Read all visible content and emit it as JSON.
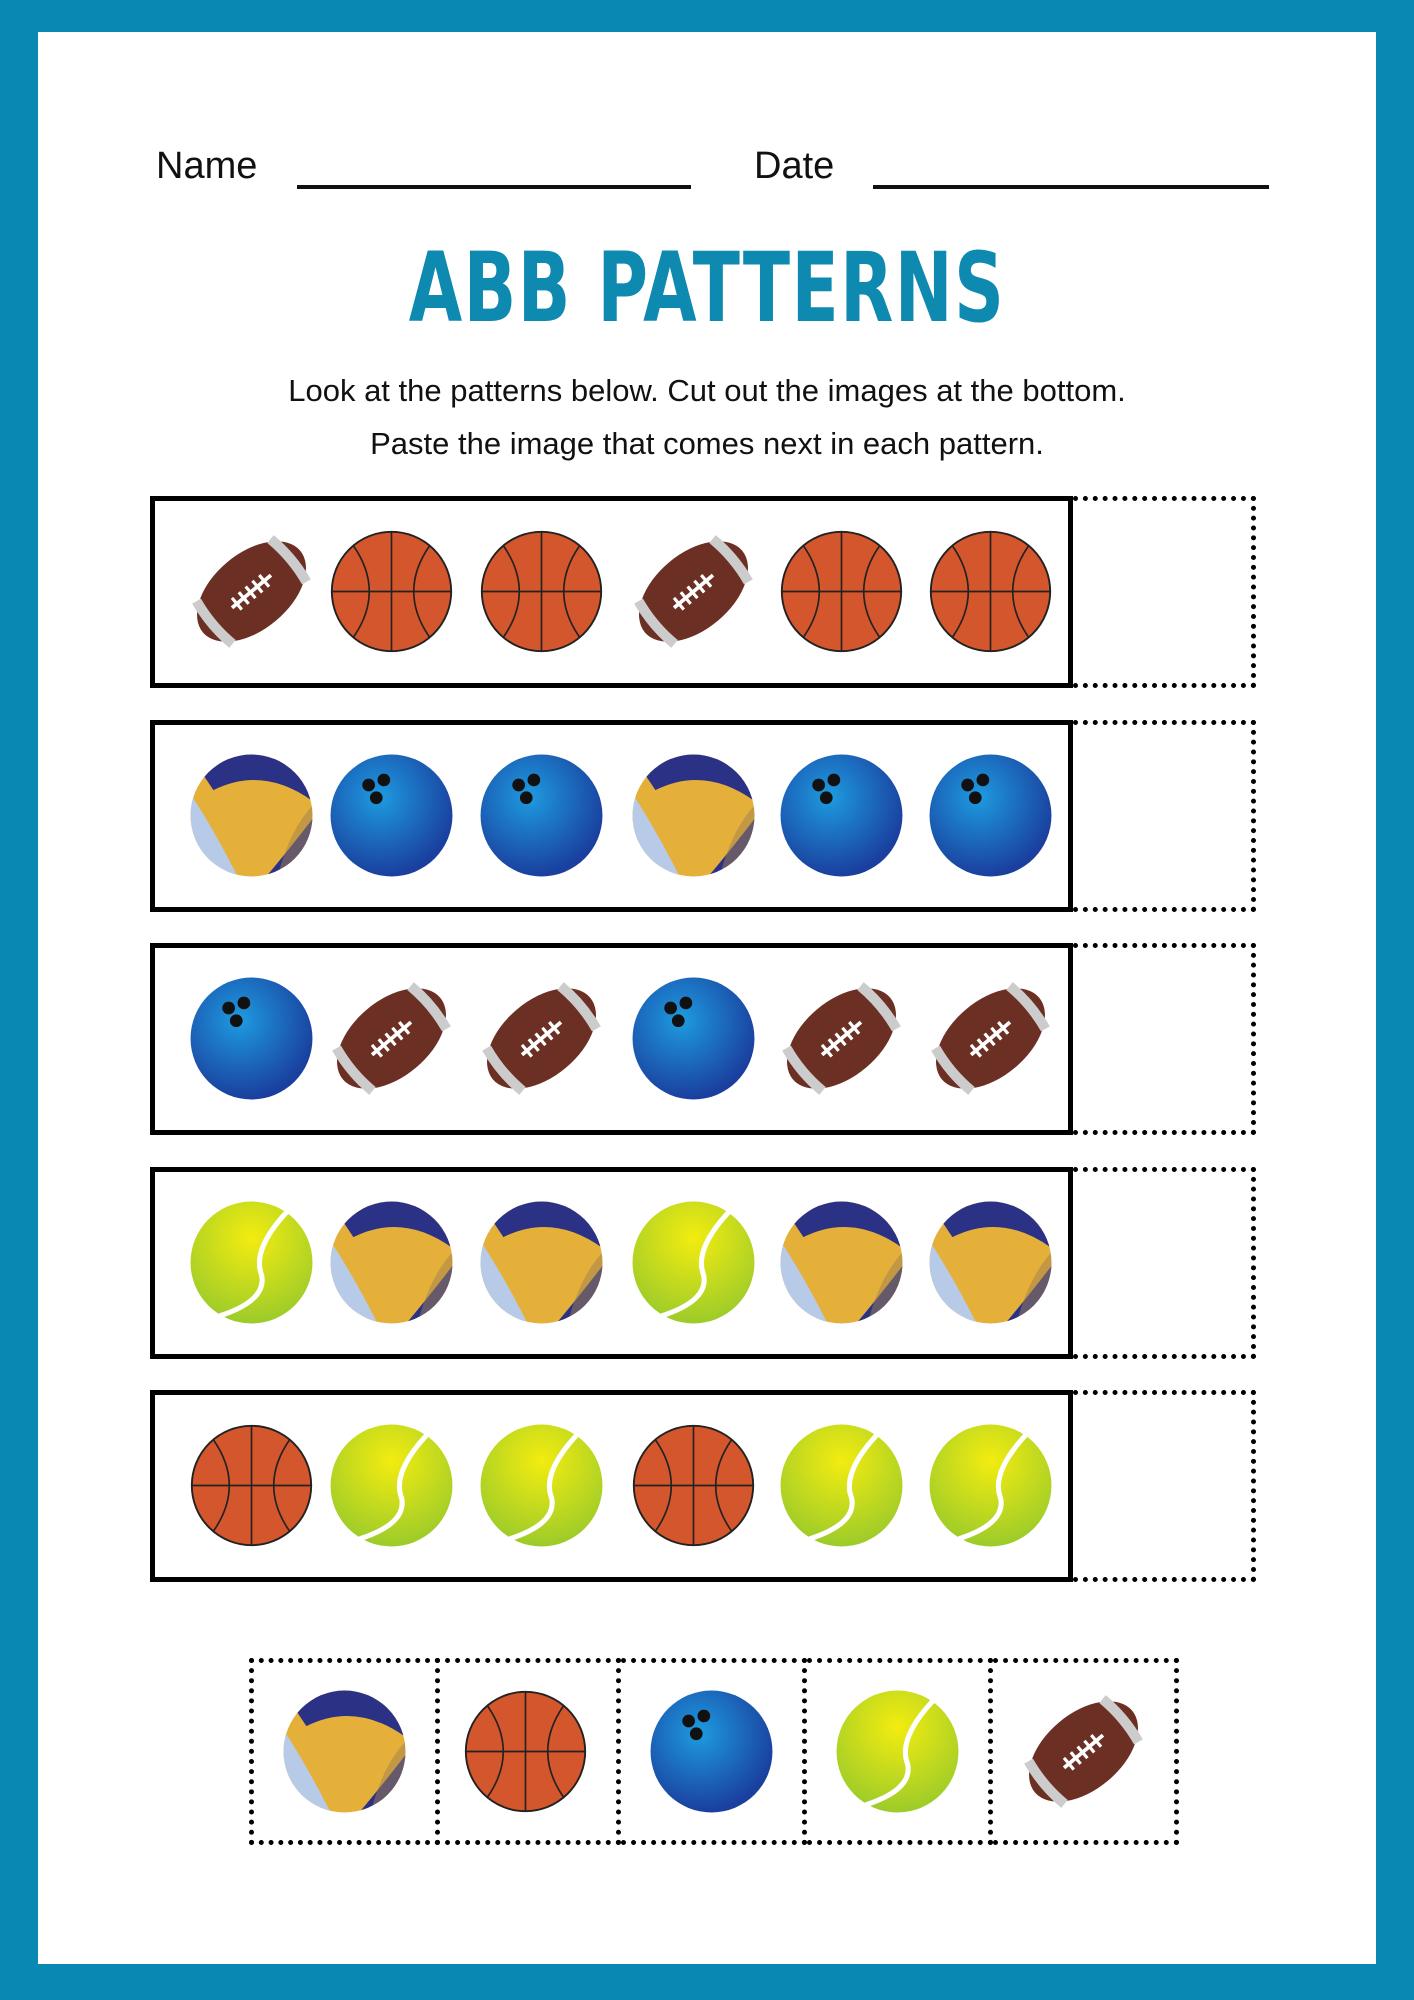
{
  "header": {
    "name_label": "Name",
    "date_label": "Date"
  },
  "title": "ABB PATTERNS",
  "instructions": [
    "Look at the patterns below. Cut out the images at the bottom.",
    "Paste the image that comes next in each pattern."
  ],
  "colors": {
    "border": "#0789b3",
    "title": "#0e8ab0"
  },
  "patterns": [
    [
      "football",
      "basketball",
      "basketball",
      "football",
      "basketball",
      "basketball"
    ],
    [
      "volleyball",
      "bowling-ball",
      "bowling-ball",
      "volleyball",
      "bowling-ball",
      "bowling-ball"
    ],
    [
      "bowling-ball",
      "football",
      "football",
      "bowling-ball",
      "football",
      "football"
    ],
    [
      "tennis-ball",
      "volleyball",
      "volleyball",
      "tennis-ball",
      "volleyball",
      "volleyball"
    ],
    [
      "basketball",
      "tennis-ball",
      "tennis-ball",
      "basketball",
      "tennis-ball",
      "tennis-ball"
    ]
  ],
  "cutouts": [
    "volleyball",
    "basketball",
    "bowling-ball",
    "tennis-ball",
    "football"
  ]
}
